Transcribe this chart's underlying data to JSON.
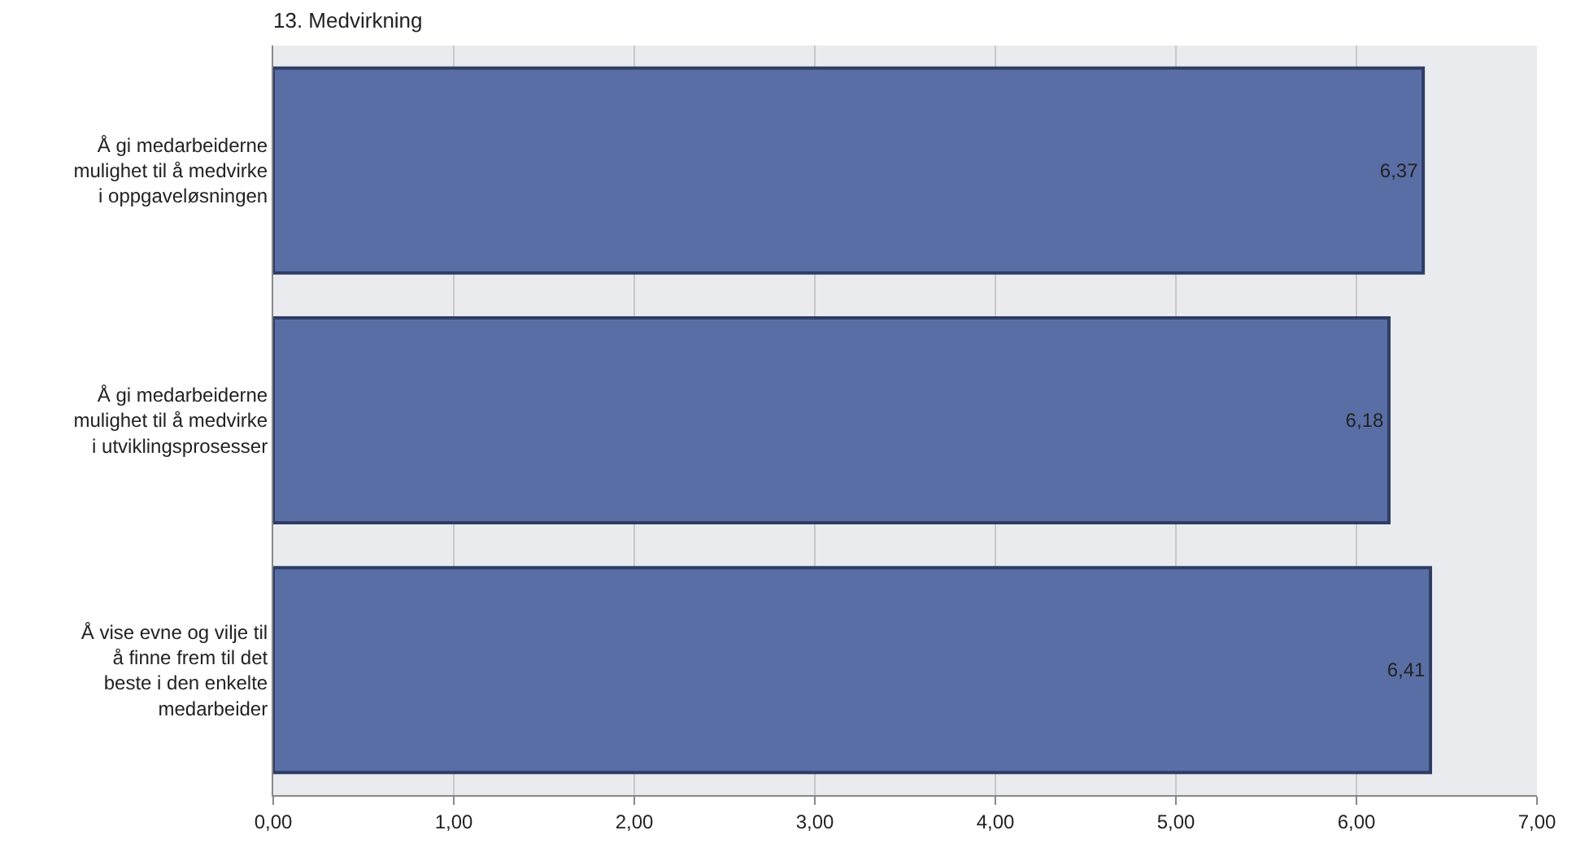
{
  "chart_data": {
    "type": "bar",
    "orientation": "horizontal",
    "title": "13. Medvirkning",
    "categories": [
      "Å gi medarbeiderne\nmulighet til å medvirke\ni oppgaveløsningen",
      "Å gi medarbeiderne\nmulighet til å medvirke\ni utviklingsprosesser",
      "Å vise evne og vilje til\nå finne frem til det\nbeste i den enkelte\nmedarbeider"
    ],
    "values": [
      6.37,
      6.18,
      6.41
    ],
    "value_labels": [
      "6,37",
      "6,18",
      "6,41"
    ],
    "color": "#5a6ea6",
    "xlim": [
      0,
      7
    ],
    "xticks": [
      {
        "value": 0,
        "label": "0,00"
      },
      {
        "value": 1,
        "label": "1,00"
      },
      {
        "value": 2,
        "label": "2,00"
      },
      {
        "value": 3,
        "label": "3,00"
      },
      {
        "value": 4,
        "label": "4,00"
      },
      {
        "value": 5,
        "label": "5,00"
      },
      {
        "value": 6,
        "label": "6,00"
      },
      {
        "value": 7,
        "label": "7,00"
      }
    ],
    "grid": "x"
  }
}
